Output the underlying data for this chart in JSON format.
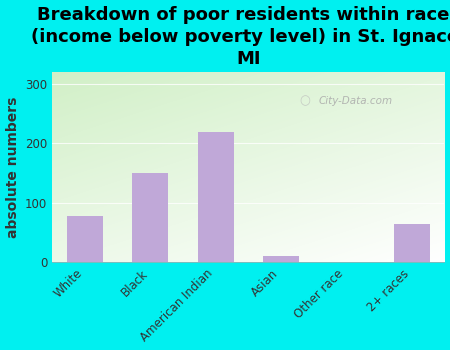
{
  "title": "Breakdown of poor residents within races\n(income below poverty level) in St. Ignace,\nMI",
  "categories": [
    "White",
    "Black",
    "American Indian",
    "Asian",
    "Other race",
    "2+ races"
  ],
  "values": [
    78,
    150,
    220,
    10,
    0,
    65
  ],
  "bar_color": "#c0a8d8",
  "ylabel": "absolute numbers",
  "ylim": [
    0,
    320
  ],
  "yticks": [
    0,
    100,
    200,
    300
  ],
  "background_color": "#00f0f0",
  "plot_bg_green": "#cce8c0",
  "plot_bg_white": "#f8faf8",
  "watermark": "City-Data.com",
  "title_fontsize": 13,
  "ylabel_fontsize": 10,
  "tick_fontsize": 8.5
}
